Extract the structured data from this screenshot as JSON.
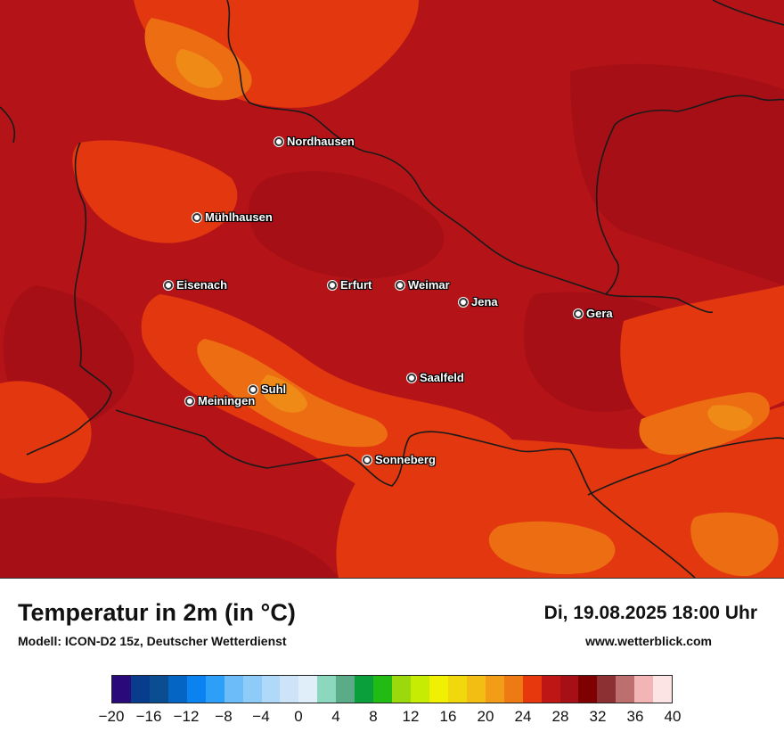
{
  "map": {
    "colors": {
      "base": "#b41418",
      "darker": "#a50f15",
      "warm": "#e2370f",
      "hot_orange": "#ec6d12",
      "light_orange": "#f08a16",
      "yellow_orange": "#f2a21a",
      "border": "#1a1a1a"
    },
    "cities": [
      {
        "name": "Nordhausen"
      },
      {
        "name": "Mühlhausen"
      },
      {
        "name": "Eisenach"
      },
      {
        "name": "Erfurt"
      },
      {
        "name": "Weimar"
      },
      {
        "name": "Jena"
      },
      {
        "name": "Gera"
      },
      {
        "name": "Saalfeld"
      },
      {
        "name": "Suhl"
      },
      {
        "name": "Meiningen"
      },
      {
        "name": "Sonneberg"
      }
    ]
  },
  "footer": {
    "title": "Temperatur in 2m (in °C)",
    "model": "Modell: ICON-D2 15z, Deutscher Wetterdienst",
    "datetime": "Di, 19.08.2025 18:00 Uhr",
    "website": "www.wetterblick.com"
  },
  "legend": {
    "colors": [
      "#2a0a7a",
      "#083c8c",
      "#0a4d90",
      "#0565c4",
      "#0a83f0",
      "#2e9ff8",
      "#6bbcf8",
      "#8ecbf8",
      "#b0d8f8",
      "#cde4f8",
      "#e0eefa",
      "#8cd8be",
      "#5aac88",
      "#0a9f3a",
      "#22bb14",
      "#9bd80c",
      "#c6ec04",
      "#f0f004",
      "#f0d80c",
      "#f2be14",
      "#f29c18",
      "#ee7a14",
      "#e6380c",
      "#be1614",
      "#a50f15",
      "#7e0000",
      "#8c3033",
      "#bd6e6e",
      "#f2b4b4",
      "#fde4e4"
    ],
    "ticks": [
      "−20",
      "−16",
      "−12",
      "−8",
      "−4",
      "0",
      "4",
      "8",
      "12",
      "16",
      "20",
      "24",
      "28",
      "32",
      "36",
      "40"
    ]
  }
}
